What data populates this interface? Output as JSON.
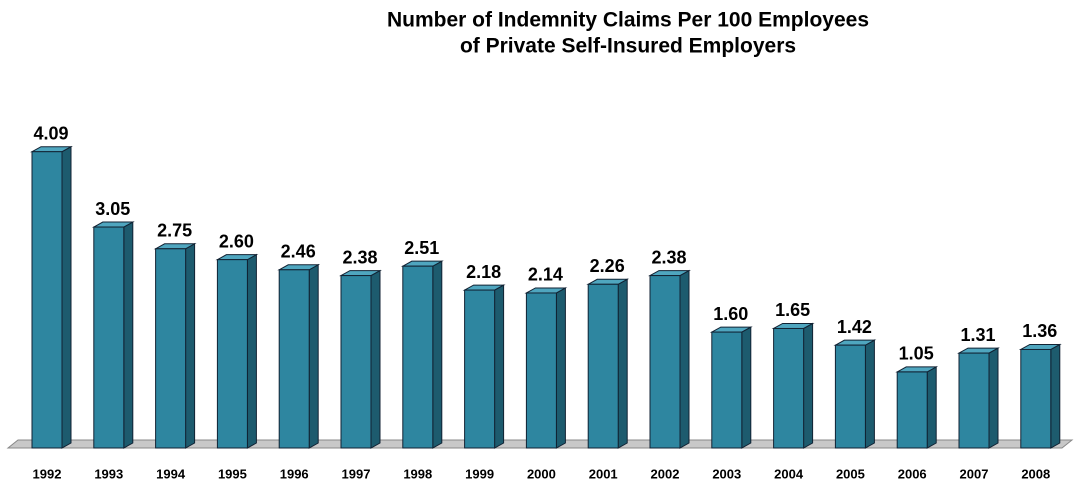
{
  "chart_data": {
    "type": "bar",
    "title": [
      "Number of Indemnity Claims Per 100 Employees",
      "of Private Self-Insured Employers"
    ],
    "categories": [
      "1992",
      "1993",
      "1994",
      "1995",
      "1996",
      "1997",
      "1998",
      "1999",
      "2000",
      "2001",
      "2002",
      "2003",
      "2004",
      "2005",
      "2006",
      "2007",
      "2008"
    ],
    "values": [
      4.09,
      3.05,
      2.75,
      2.6,
      2.46,
      2.38,
      2.51,
      2.18,
      2.14,
      2.26,
      2.38,
      1.6,
      1.65,
      1.42,
      1.05,
      1.31,
      1.36
    ],
    "value_labels": [
      "4.09",
      "3.05",
      "2.75",
      "2.60",
      "2.46",
      "2.38",
      "2.51",
      "2.18",
      "2.14",
      "2.26",
      "2.38",
      "1.60",
      "1.65",
      "1.42",
      "1.05",
      "1.31",
      "1.36"
    ],
    "color": "#2e86a0",
    "ylim": [
      0,
      4.5
    ]
  }
}
